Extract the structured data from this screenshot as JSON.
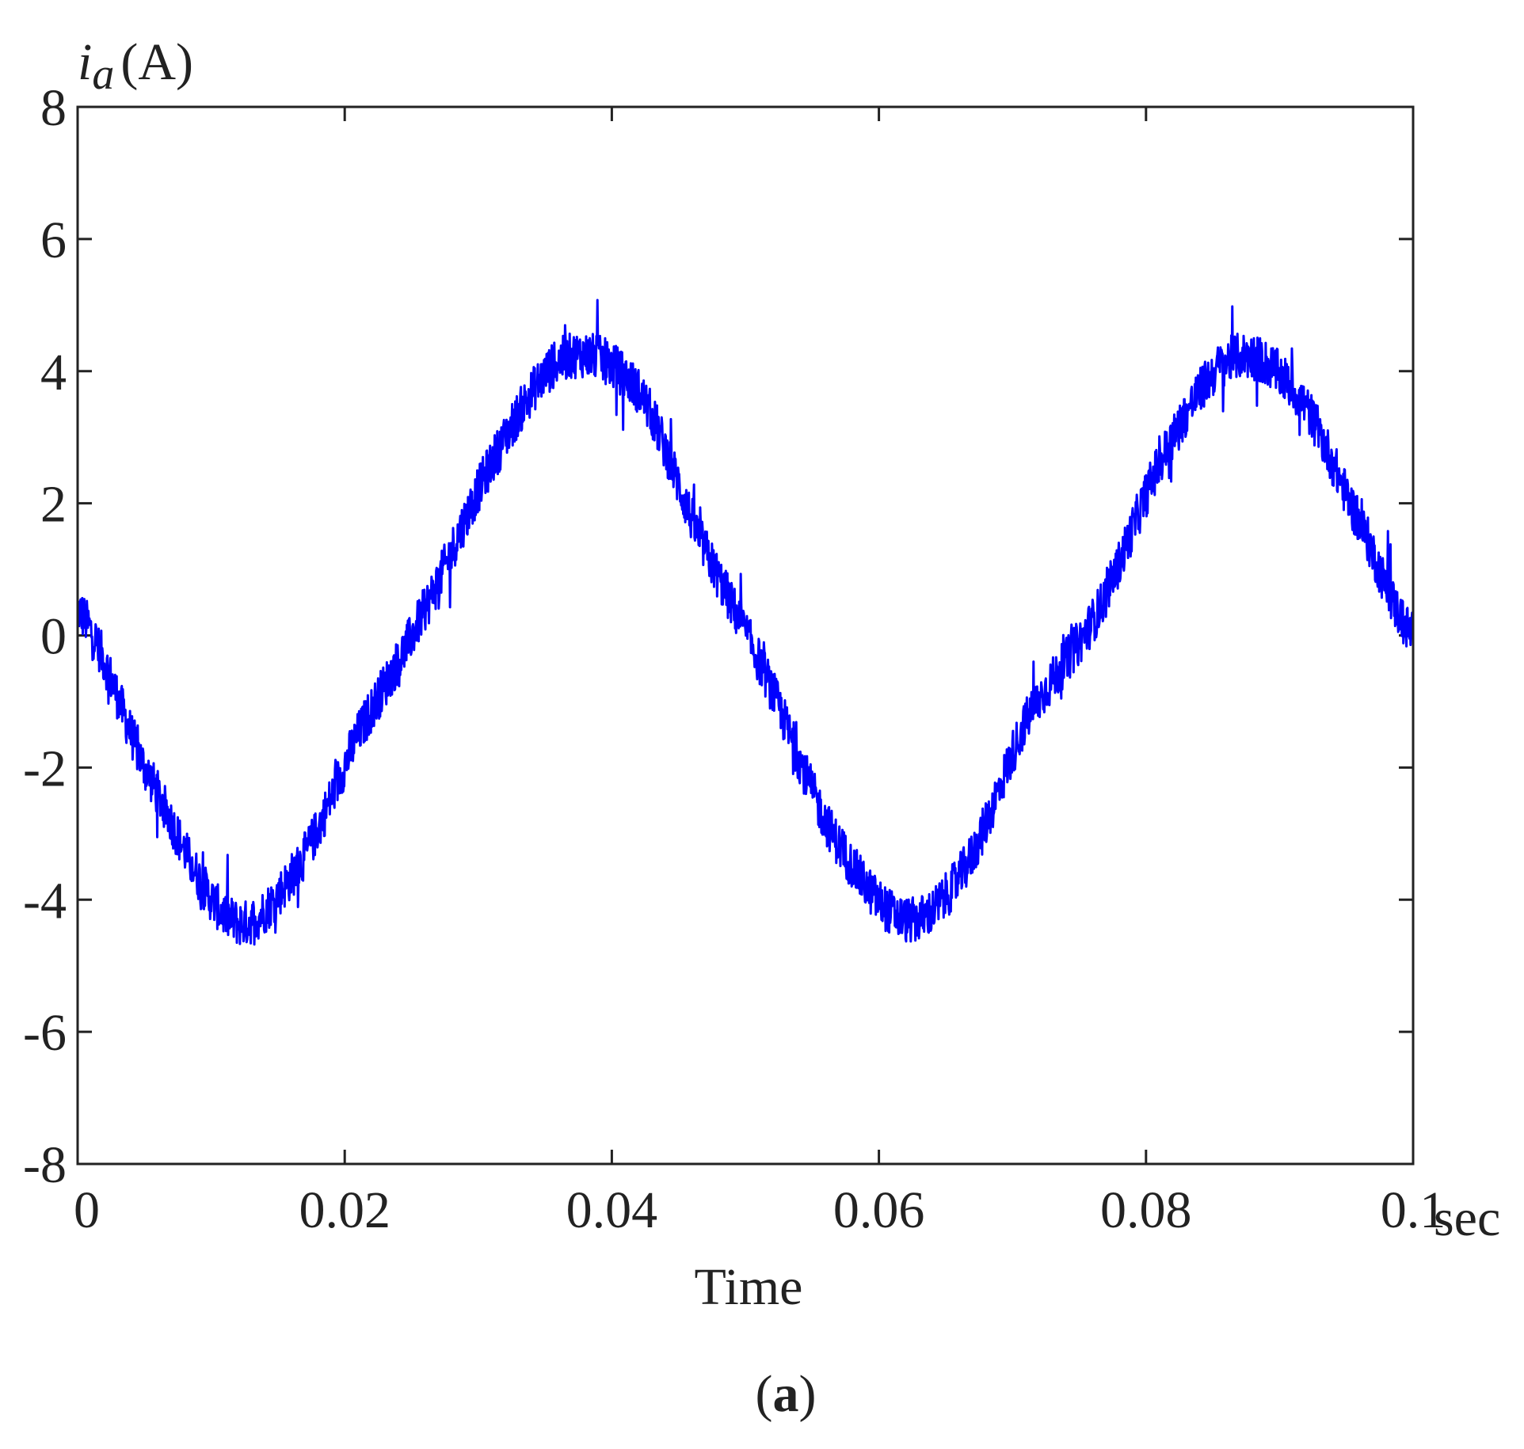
{
  "chart_data": {
    "type": "line",
    "ylabel": {
      "symbol": "i",
      "subscript": "a",
      "unit": "(A)"
    },
    "xlabel": "Time",
    "xunit": "sec",
    "panel_label": {
      "open": "(",
      "letter": "a",
      "close": ")"
    },
    "xlim": [
      0,
      0.1
    ],
    "ylim": [
      -8,
      8
    ],
    "xticks": [
      0,
      0.02,
      0.04,
      0.06,
      0.08,
      0.1
    ],
    "xtick_labels": [
      "0",
      "0.02",
      "0.04",
      "0.06",
      "0.08",
      "0.1"
    ],
    "yticks": [
      -8,
      -6,
      -4,
      -2,
      0,
      2,
      4,
      6,
      8
    ],
    "ytick_labels": [
      "-8",
      "-6",
      "-4",
      "-2",
      "0",
      "2",
      "4",
      "6",
      "8"
    ],
    "grid": false,
    "line_color": "#0000ff",
    "series": [
      {
        "x": [
          0,
          0.005,
          0.0115,
          0.0165,
          0.021,
          0.026,
          0.0315,
          0.0365,
          0.042,
          0.0465,
          0.0515,
          0.0565,
          0.062,
          0.0665,
          0.071,
          0.0765,
          0.0815,
          0.0865,
          0.0915,
          0.0965,
          0.1
        ],
        "y": [
          0.4,
          -2.0,
          -4.3,
          -3.5,
          -1.5,
          0.4,
          2.8,
          4.2,
          3.7,
          1.5,
          -0.6,
          -3.0,
          -4.3,
          -3.5,
          -1.3,
          0.4,
          2.8,
          4.2,
          3.6,
          1.5,
          0.0
        ],
        "noise_amplitude": 0.35
      }
    ]
  }
}
